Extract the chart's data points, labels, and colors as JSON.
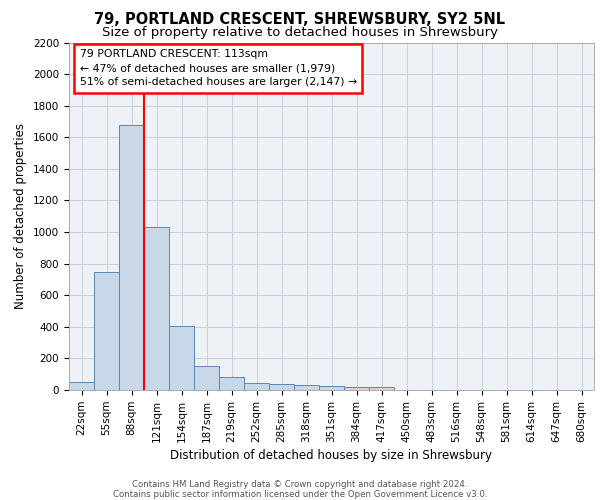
{
  "title": "79, PORTLAND CRESCENT, SHREWSBURY, SY2 5NL",
  "subtitle": "Size of property relative to detached houses in Shrewsbury",
  "xlabel": "Distribution of detached houses by size in Shrewsbury",
  "ylabel": "Number of detached properties",
  "bar_labels": [
    "22sqm",
    "55sqm",
    "88sqm",
    "121sqm",
    "154sqm",
    "187sqm",
    "219sqm",
    "252sqm",
    "285sqm",
    "318sqm",
    "351sqm",
    "384sqm",
    "417sqm",
    "450sqm",
    "483sqm",
    "516sqm",
    "548sqm",
    "581sqm",
    "614sqm",
    "647sqm",
    "680sqm"
  ],
  "bar_values": [
    50,
    750,
    1680,
    1035,
    405,
    150,
    85,
    47,
    40,
    30,
    25,
    20,
    20,
    0,
    0,
    0,
    0,
    0,
    0,
    0,
    0
  ],
  "bar_color": "#c8d8e8",
  "bar_edge_color": "#5588bb",
  "annotation_text": "79 PORTLAND CRESCENT: 113sqm\n← 47% of detached houses are smaller (1,979)\n51% of semi-detached houses are larger (2,147) →",
  "annotation_box_color": "white",
  "annotation_box_edge_color": "red",
  "ylim": [
    0,
    2200
  ],
  "yticks": [
    0,
    200,
    400,
    600,
    800,
    1000,
    1200,
    1400,
    1600,
    1800,
    2000,
    2200
  ],
  "footer_text": "Contains HM Land Registry data © Crown copyright and database right 2024.\nContains public sector information licensed under the Open Government Licence v3.0.",
  "bg_color": "#eef2f7",
  "grid_color": "#c8d0dc",
  "title_fontsize": 10.5,
  "subtitle_fontsize": 9.5,
  "tick_fontsize": 7.5,
  "ylabel_fontsize": 8.5,
  "xlabel_fontsize": 8.5,
  "footer_fontsize": 6.2
}
